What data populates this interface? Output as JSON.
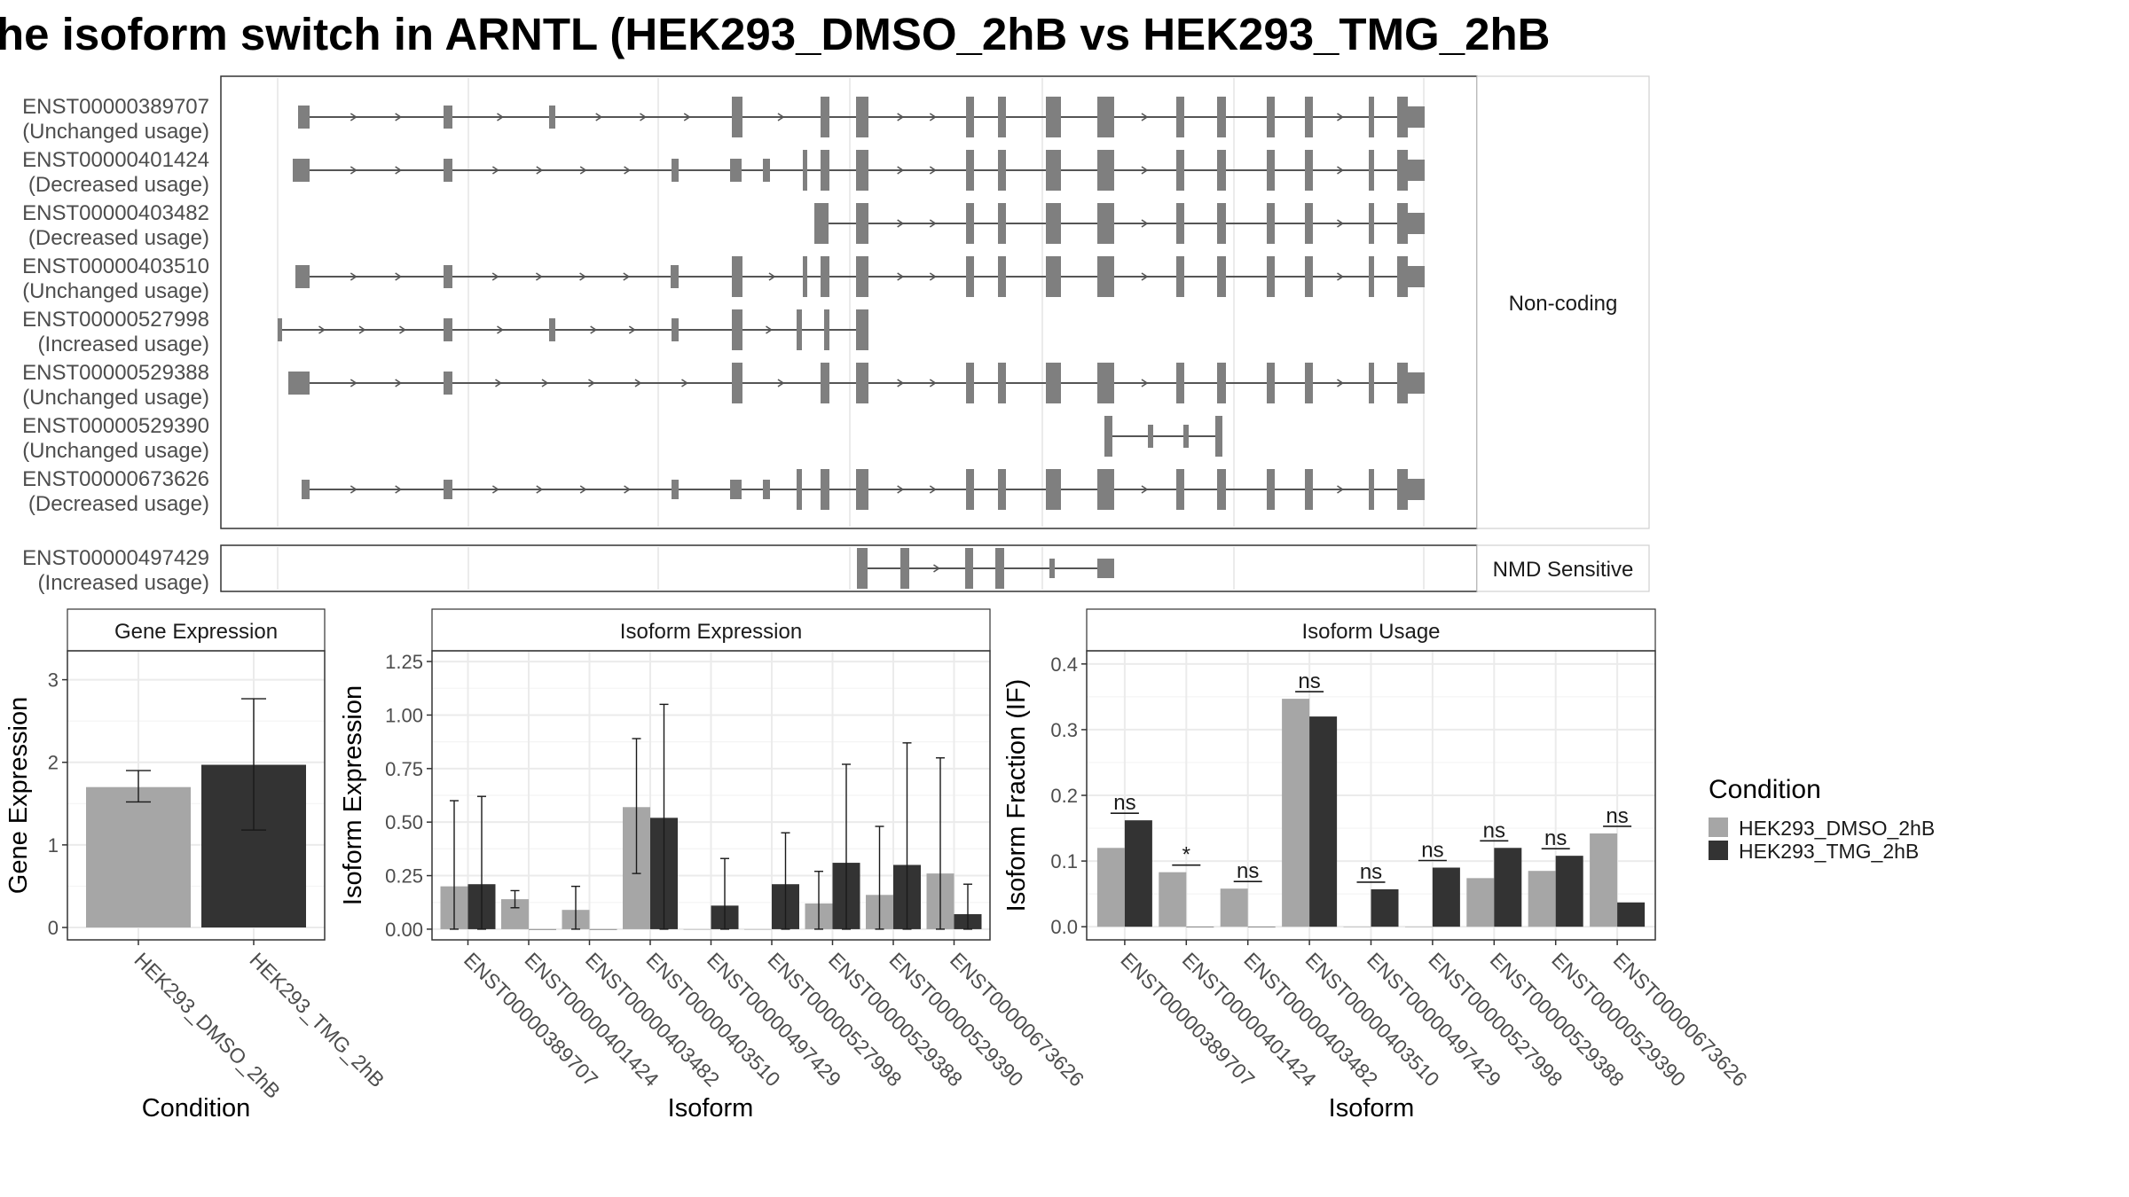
{
  "title": "he isoform switch in ARNTL (HEK293_DMSO_2hB vs HEK293_TMG_2hB",
  "colors": {
    "dmso": "#a6a6a6",
    "tmg": "#333333",
    "exon": "#7f7f7f",
    "intron": "#555555",
    "panel_border": "#333333",
    "strip_fill": "#ffffff",
    "grid": "#ebebeb"
  },
  "transcript_plot": {
    "panels": [
      {
        "label": "Non-coding",
        "transcripts": [
          {
            "id": "ENST00000389707",
            "status": "(Unchanged usage)"
          },
          {
            "id": "ENST00000401424",
            "status": "(Decreased usage)"
          },
          {
            "id": "ENST00000403482",
            "status": "(Decreased usage)"
          },
          {
            "id": "ENST00000403510",
            "status": "(Unchanged usage)"
          },
          {
            "id": "ENST00000527998",
            "status": "(Increased usage)"
          },
          {
            "id": "ENST00000529388",
            "status": "(Unchanged usage)"
          },
          {
            "id": "ENST00000529390",
            "status": "(Unchanged usage)"
          },
          {
            "id": "ENST00000673626",
            "status": "(Decreased usage)"
          }
        ]
      },
      {
        "label": "NMD Sensitive",
        "transcripts": [
          {
            "id": "ENST00000497429",
            "status": "(Increased usage)"
          }
        ]
      }
    ]
  },
  "chart_data": [
    {
      "type": "bar",
      "title": "Gene Expression",
      "xlabel": "Condition",
      "ylabel": "Gene Expression",
      "categories": [
        "HEK293_DMSO_2hB",
        "HEK293_TMG_2hB"
      ],
      "values": [
        1.7,
        1.97
      ],
      "error_low": [
        1.52,
        1.18
      ],
      "error_high": [
        1.9,
        2.77
      ],
      "yticks": [
        "0",
        "1",
        "2",
        "3"
      ],
      "ylim": [
        -0.15,
        3.35
      ],
      "grid": true
    },
    {
      "type": "bar",
      "title": "Isoform Expression",
      "xlabel": "Isoform",
      "ylabel": "Isoform Expression",
      "categories": [
        "ENST00000389707",
        "ENST00000401424",
        "ENST00000403482",
        "ENST00000403510",
        "ENST00000497429",
        "ENST00000527998",
        "ENST00000529388",
        "ENST00000529390",
        "ENST00000673626"
      ],
      "series": [
        {
          "name": "HEK293_DMSO_2hB",
          "values": [
            0.2,
            0.14,
            0.09,
            0.57,
            0.0,
            0.0,
            0.12,
            0.16,
            0.26
          ],
          "error_low": [
            0.0,
            0.1,
            0.0,
            0.26,
            null,
            null,
            0.0,
            0.0,
            0.0
          ],
          "error_high": [
            0.6,
            0.18,
            0.2,
            0.89,
            null,
            null,
            0.27,
            0.48,
            0.8
          ]
        },
        {
          "name": "HEK293_TMG_2hB",
          "values": [
            0.21,
            0.0,
            0.0,
            0.52,
            0.11,
            0.21,
            0.31,
            0.3,
            0.07
          ],
          "error_low": [
            0.0,
            null,
            null,
            0.0,
            0.0,
            0.0,
            0.0,
            0.0,
            0.0
          ],
          "error_high": [
            0.62,
            null,
            null,
            1.05,
            0.33,
            0.45,
            0.77,
            0.87,
            0.21
          ]
        }
      ],
      "yticks": [
        "0.00",
        "0.25",
        "0.50",
        "0.75",
        "1.00",
        "1.25"
      ],
      "ylim": [
        -0.05,
        1.3
      ],
      "grid": true
    },
    {
      "type": "bar",
      "title": "Isoform Usage",
      "xlabel": "Isoform",
      "ylabel": "Isoform Fraction (IF)",
      "categories": [
        "ENST00000389707",
        "ENST00000401424",
        "ENST00000403482",
        "ENST00000403510",
        "ENST00000497429",
        "ENST00000527998",
        "ENST00000529388",
        "ENST00000529390",
        "ENST00000673626"
      ],
      "series": [
        {
          "name": "HEK293_DMSO_2hB",
          "values": [
            0.12,
            0.083,
            0.058,
            0.347,
            0.0,
            0.0,
            0.074,
            0.085,
            0.142
          ]
        },
        {
          "name": "HEK293_TMG_2hB",
          "values": [
            0.162,
            0.0,
            0.0,
            0.32,
            0.057,
            0.09,
            0.12,
            0.108,
            0.037
          ]
        }
      ],
      "significance": [
        "ns",
        "*",
        "ns",
        "ns",
        "ns",
        "ns",
        "ns",
        "ns",
        "ns"
      ],
      "yticks": [
        "0.0",
        "0.1",
        "0.2",
        "0.3",
        "0.4"
      ],
      "ylim": [
        -0.02,
        0.42
      ],
      "grid": true
    }
  ],
  "legend": {
    "title": "Condition",
    "items": [
      "HEK293_DMSO_2hB",
      "HEK293_TMG_2hB"
    ]
  }
}
